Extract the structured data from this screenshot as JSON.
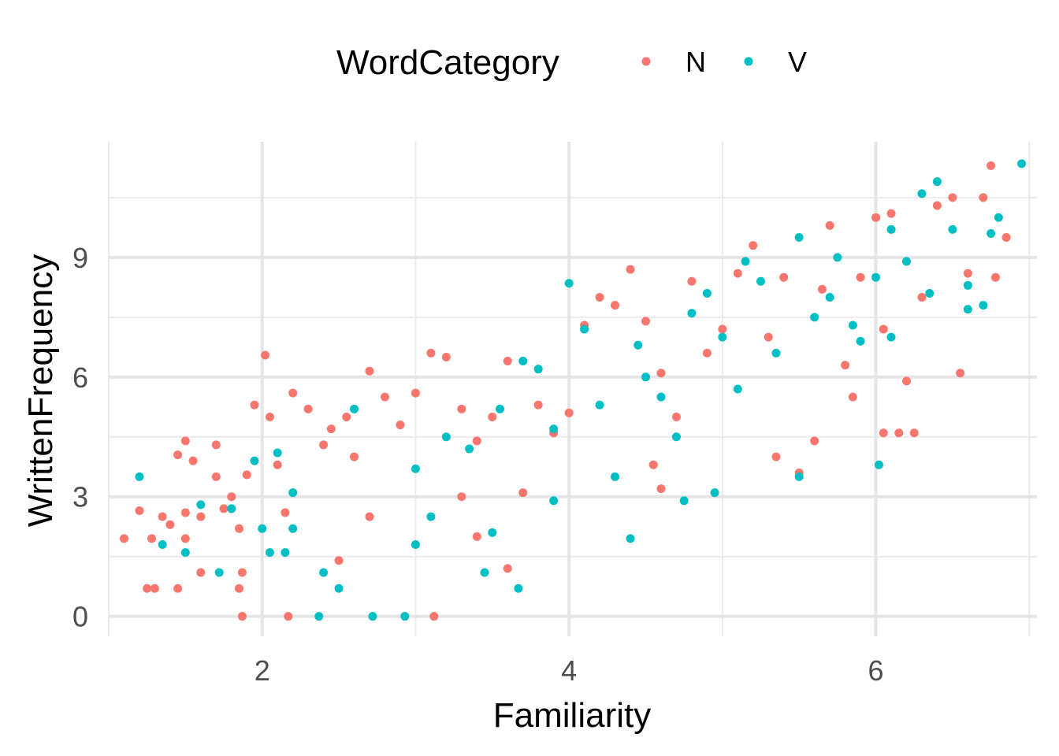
{
  "chart_data": {
    "type": "scatter",
    "title": "",
    "xlabel": "Familiarity",
    "ylabel": "WrittenFrequency",
    "xlim": [
      1.0,
      7.05
    ],
    "ylim": [
      -0.5,
      11.9
    ],
    "x_ticks": [
      2,
      4,
      6
    ],
    "x_minor_ticks": [
      1,
      3,
      5,
      7
    ],
    "y_ticks": [
      0,
      3,
      6,
      9
    ],
    "y_minor_ticks": [
      1.5,
      4.5,
      7.5,
      10.5
    ],
    "grid": true,
    "legend": {
      "title": "WordCategory",
      "position": "top",
      "entries": [
        {
          "label": "N",
          "color": "#F8766D"
        },
        {
          "label": "V",
          "color": "#00BFC4"
        }
      ]
    },
    "series": [
      {
        "name": "N",
        "color": "#F8766D",
        "points": [
          [
            1.1,
            1.95
          ],
          [
            1.2,
            2.65
          ],
          [
            1.25,
            0.7
          ],
          [
            1.3,
            0.7
          ],
          [
            1.28,
            1.95
          ],
          [
            1.35,
            2.5
          ],
          [
            1.4,
            2.3
          ],
          [
            1.45,
            4.05
          ],
          [
            1.5,
            4.4
          ],
          [
            1.55,
            3.9
          ],
          [
            1.5,
            2.6
          ],
          [
            1.6,
            2.5
          ],
          [
            1.45,
            0.7
          ],
          [
            1.5,
            1.95
          ],
          [
            1.6,
            1.1
          ],
          [
            1.7,
            3.5
          ],
          [
            1.7,
            4.3
          ],
          [
            1.75,
            2.7
          ],
          [
            1.8,
            3.0
          ],
          [
            1.85,
            2.2
          ],
          [
            1.9,
            3.55
          ],
          [
            1.95,
            5.3
          ],
          [
            1.87,
            1.1
          ],
          [
            1.85,
            0.7
          ],
          [
            1.87,
            0.0
          ],
          [
            2.02,
            6.55
          ],
          [
            2.05,
            5.0
          ],
          [
            2.1,
            3.8
          ],
          [
            2.15,
            2.6
          ],
          [
            2.17,
            0.0
          ],
          [
            2.2,
            5.6
          ],
          [
            2.3,
            5.2
          ],
          [
            2.4,
            4.3
          ],
          [
            2.45,
            4.7
          ],
          [
            2.55,
            5.0
          ],
          [
            2.7,
            6.15
          ],
          [
            2.6,
            4.0
          ],
          [
            2.8,
            5.5
          ],
          [
            2.9,
            4.8
          ],
          [
            3.0,
            5.6
          ],
          [
            3.1,
            6.6
          ],
          [
            3.2,
            6.5
          ],
          [
            3.12,
            0.0
          ],
          [
            3.3,
            5.2
          ],
          [
            3.4,
            4.4
          ],
          [
            3.5,
            5.0
          ],
          [
            3.6,
            6.4
          ],
          [
            3.7,
            3.1
          ],
          [
            3.8,
            5.3
          ],
          [
            3.9,
            4.6
          ],
          [
            4.0,
            5.1
          ],
          [
            4.1,
            7.3
          ],
          [
            4.2,
            8.0
          ],
          [
            4.3,
            7.8
          ],
          [
            4.4,
            8.7
          ],
          [
            4.5,
            7.4
          ],
          [
            4.6,
            6.1
          ],
          [
            4.55,
            3.8
          ],
          [
            4.6,
            3.2
          ],
          [
            4.7,
            5.0
          ],
          [
            4.8,
            8.4
          ],
          [
            4.9,
            6.6
          ],
          [
            5.0,
            7.2
          ],
          [
            5.1,
            8.6
          ],
          [
            5.2,
            9.3
          ],
          [
            5.3,
            7.0
          ],
          [
            5.35,
            4.0
          ],
          [
            5.4,
            8.5
          ],
          [
            5.5,
            3.6
          ],
          [
            5.6,
            4.4
          ],
          [
            5.65,
            8.2
          ],
          [
            5.7,
            9.8
          ],
          [
            5.8,
            6.3
          ],
          [
            5.85,
            5.5
          ],
          [
            5.9,
            8.5
          ],
          [
            6.0,
            10.0
          ],
          [
            6.05,
            7.2
          ],
          [
            6.1,
            10.1
          ],
          [
            6.15,
            4.6
          ],
          [
            6.2,
            5.9
          ],
          [
            6.3,
            8.0
          ],
          [
            6.4,
            10.3
          ],
          [
            6.5,
            10.5
          ],
          [
            6.55,
            6.1
          ],
          [
            6.6,
            8.6
          ],
          [
            6.7,
            10.5
          ],
          [
            6.75,
            11.3
          ],
          [
            6.85,
            9.5
          ],
          [
            6.78,
            8.5
          ],
          [
            6.05,
            4.6
          ],
          [
            6.25,
            4.6
          ],
          [
            3.4,
            2.0
          ],
          [
            3.6,
            1.2
          ],
          [
            3.3,
            3.0
          ],
          [
            2.7,
            2.5
          ],
          [
            2.5,
            1.4
          ]
        ]
      },
      {
        "name": "V",
        "color": "#00BFC4",
        "points": [
          [
            1.2,
            3.5
          ],
          [
            1.35,
            1.8
          ],
          [
            1.5,
            1.6
          ],
          [
            1.6,
            2.8
          ],
          [
            1.72,
            1.1
          ],
          [
            1.8,
            2.7
          ],
          [
            1.95,
            3.9
          ],
          [
            2.0,
            2.2
          ],
          [
            2.05,
            1.6
          ],
          [
            2.1,
            4.1
          ],
          [
            2.15,
            1.6
          ],
          [
            2.2,
            3.1
          ],
          [
            2.37,
            0.0
          ],
          [
            2.4,
            1.1
          ],
          [
            2.5,
            0.7
          ],
          [
            2.6,
            5.2
          ],
          [
            2.72,
            0.0
          ],
          [
            2.93,
            0.0
          ],
          [
            3.0,
            3.7
          ],
          [
            3.1,
            2.5
          ],
          [
            3.2,
            4.5
          ],
          [
            3.35,
            4.2
          ],
          [
            3.45,
            1.1
          ],
          [
            3.55,
            5.2
          ],
          [
            3.67,
            0.7
          ],
          [
            3.7,
            6.4
          ],
          [
            3.8,
            6.2
          ],
          [
            3.9,
            4.7
          ],
          [
            4.0,
            8.35
          ],
          [
            4.1,
            7.2
          ],
          [
            4.2,
            5.3
          ],
          [
            4.3,
            3.5
          ],
          [
            4.4,
            1.95
          ],
          [
            4.45,
            6.8
          ],
          [
            4.5,
            6.0
          ],
          [
            4.6,
            5.5
          ],
          [
            4.7,
            4.5
          ],
          [
            4.75,
            2.9
          ],
          [
            4.8,
            7.6
          ],
          [
            4.9,
            8.1
          ],
          [
            4.95,
            3.1
          ],
          [
            5.0,
            7.0
          ],
          [
            5.1,
            5.7
          ],
          [
            5.15,
            8.9
          ],
          [
            5.25,
            8.4
          ],
          [
            5.35,
            6.6
          ],
          [
            5.5,
            9.5
          ],
          [
            5.5,
            3.5
          ],
          [
            5.6,
            7.5
          ],
          [
            5.7,
            8.0
          ],
          [
            5.75,
            9.0
          ],
          [
            5.85,
            7.3
          ],
          [
            6.0,
            8.5
          ],
          [
            6.02,
            3.8
          ],
          [
            6.1,
            9.7
          ],
          [
            6.2,
            8.9
          ],
          [
            6.3,
            10.6
          ],
          [
            6.4,
            10.9
          ],
          [
            6.5,
            9.7
          ],
          [
            6.6,
            7.7
          ],
          [
            6.7,
            7.8
          ],
          [
            6.75,
            9.6
          ],
          [
            6.8,
            10.0
          ],
          [
            6.95,
            11.35
          ],
          [
            6.6,
            8.3
          ],
          [
            6.35,
            8.1
          ],
          [
            6.1,
            7.0
          ],
          [
            5.9,
            6.9
          ],
          [
            3.9,
            2.9
          ],
          [
            3.5,
            2.1
          ],
          [
            3.0,
            1.8
          ],
          [
            2.2,
            2.2
          ]
        ]
      }
    ]
  }
}
